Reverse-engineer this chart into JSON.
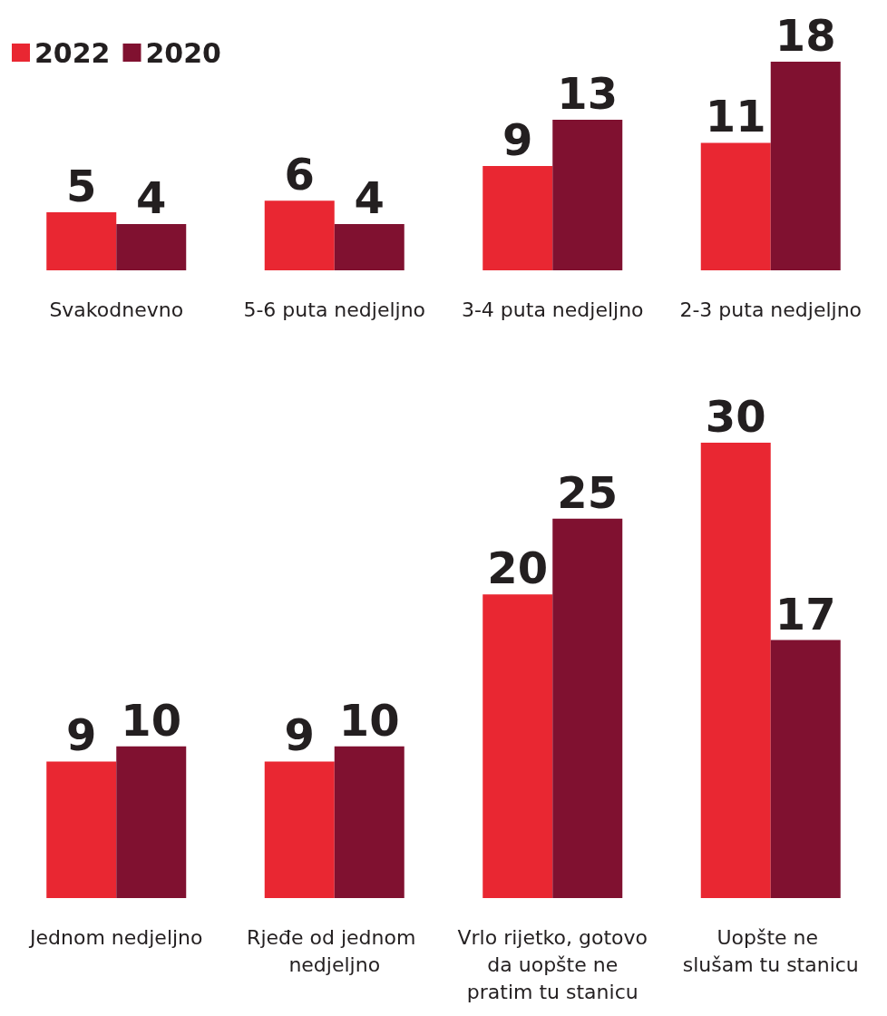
{
  "chart_data": [
    {
      "type": "bar",
      "categories": [
        "Svakodnevno",
        "5-6 puta nedjeljno",
        "3-4 puta nedjeljno",
        "2-3 puta nedjeljno"
      ],
      "series": [
        {
          "name": "2022",
          "color": "#e92732",
          "values": [
            5,
            6,
            9,
            11
          ]
        },
        {
          "name": "2020",
          "color": "#801130",
          "values": [
            4,
            4,
            13,
            18
          ]
        }
      ],
      "data_labels": true,
      "legend": "top left",
      "grid": false
    },
    {
      "type": "bar",
      "categories": [
        "Jednom nedjeljno",
        "Rjeđe od jednom nedjeljno",
        "Vrlo rijetko, gotovo da uopšte ne pratim tu stanicu",
        "Uopšte ne slušam tu stanicu"
      ],
      "series": [
        {
          "color": "#e92732",
          "values": [
            9,
            9,
            20,
            30
          ]
        },
        {
          "color": "#801130",
          "values": [
            10,
            10,
            25,
            17
          ]
        }
      ],
      "data_labels": true,
      "legend": false,
      "grid": false
    }
  ]
}
